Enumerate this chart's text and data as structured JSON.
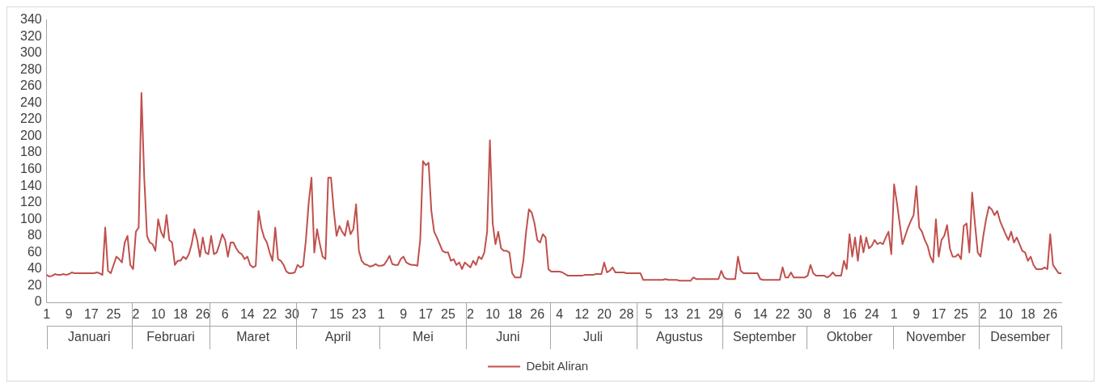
{
  "chart_data": {
    "type": "line",
    "legend": "bottom",
    "grid": false,
    "marker": "none",
    "line_style": "solid",
    "ylim": [
      0,
      340
    ],
    "yticks": [
      0,
      20,
      40,
      60,
      80,
      100,
      120,
      140,
      160,
      180,
      200,
      220,
      240,
      260,
      280,
      300,
      320,
      340
    ],
    "annotations": [
      "Januari",
      "Februari",
      "Maret",
      "April",
      "Mei",
      "Juni",
      "Juli",
      "Agustus",
      "September",
      "Oktober",
      "November",
      "Desember"
    ],
    "categories": [
      "1",
      null,
      null,
      null,
      null,
      null,
      null,
      null,
      "9",
      null,
      null,
      null,
      null,
      null,
      null,
      null,
      "17",
      null,
      null,
      null,
      null,
      null,
      null,
      null,
      "25",
      null,
      null,
      null,
      null,
      null,
      null,
      null,
      "2",
      null,
      null,
      null,
      null,
      null,
      null,
      null,
      "10",
      null,
      null,
      null,
      null,
      null,
      null,
      null,
      "18",
      null,
      null,
      null,
      null,
      null,
      null,
      null,
      "26",
      null,
      null,
      null,
      null,
      null,
      null,
      null,
      "6",
      null,
      null,
      null,
      null,
      null,
      null,
      null,
      "14",
      null,
      null,
      null,
      null,
      null,
      null,
      null,
      "22",
      null,
      null,
      null,
      null,
      null,
      null,
      null,
      "30",
      null,
      null,
      null,
      null,
      null,
      null,
      null,
      "7",
      null,
      null,
      null,
      null,
      null,
      null,
      null,
      "15",
      null,
      null,
      null,
      null,
      null,
      null,
      null,
      "23",
      null,
      null,
      null,
      null,
      null,
      null,
      null,
      "1",
      null,
      null,
      null,
      null,
      null,
      null,
      null,
      "9",
      null,
      null,
      null,
      null,
      null,
      null,
      null,
      "17",
      null,
      null,
      null,
      null,
      null,
      null,
      null,
      "25",
      null,
      null,
      null,
      null,
      null,
      null,
      null,
      "2",
      null,
      null,
      null,
      null,
      null,
      null,
      null,
      "10",
      null,
      null,
      null,
      null,
      null,
      null,
      null,
      "18",
      null,
      null,
      null,
      null,
      null,
      null,
      null,
      "26",
      null,
      null,
      null,
      null,
      null,
      null,
      null,
      "4",
      null,
      null,
      null,
      null,
      null,
      null,
      null,
      "12",
      null,
      null,
      null,
      null,
      null,
      null,
      null,
      "20",
      null,
      null,
      null,
      null,
      null,
      null,
      null,
      "28",
      null,
      null,
      null,
      null,
      null,
      null,
      null,
      "5",
      null,
      null,
      null,
      null,
      null,
      null,
      null,
      "13",
      null,
      null,
      null,
      null,
      null,
      null,
      null,
      "21",
      null,
      null,
      null,
      null,
      null,
      null,
      null,
      "29",
      null,
      null,
      null,
      null,
      null,
      null,
      null,
      "6",
      null,
      null,
      null,
      null,
      null,
      null,
      null,
      "14",
      null,
      null,
      null,
      null,
      null,
      null,
      null,
      "22",
      null,
      null,
      null,
      null,
      null,
      null,
      null,
      "30",
      null,
      null,
      null,
      null,
      null,
      null,
      null,
      "8",
      null,
      null,
      null,
      null,
      null,
      null,
      null,
      "16",
      null,
      null,
      null,
      null,
      null,
      null,
      null,
      "24",
      null,
      null,
      null,
      null,
      null,
      null,
      null,
      "1",
      null,
      null,
      null,
      null,
      null,
      null,
      null,
      "9",
      null,
      null,
      null,
      null,
      null,
      null,
      null,
      "17",
      null,
      null,
      null,
      null,
      null,
      null,
      null,
      "25",
      null,
      null,
      null,
      null,
      null,
      null,
      null,
      "2",
      null,
      null,
      null,
      null,
      null,
      null,
      null,
      "10",
      null,
      null,
      null,
      null,
      null,
      null,
      null,
      "18",
      null,
      null,
      null,
      null,
      null,
      null,
      null,
      "26",
      null,
      null,
      null,
      null
    ],
    "series": [
      {
        "name": "Debit Aliran",
        "color": "#c0504d",
        "values": [
          33,
          31,
          32,
          34,
          33,
          33,
          34,
          33,
          34,
          36,
          35,
          35,
          35,
          35,
          35,
          35,
          35,
          35,
          36,
          35,
          33,
          90,
          38,
          35,
          45,
          55,
          52,
          48,
          72,
          80,
          45,
          40,
          85,
          90,
          252,
          150,
          80,
          72,
          70,
          62,
          100,
          85,
          78,
          105,
          75,
          72,
          45,
          50,
          50,
          55,
          52,
          58,
          70,
          88,
          75,
          55,
          78,
          60,
          58,
          80,
          58,
          60,
          70,
          82,
          75,
          55,
          72,
          72,
          65,
          60,
          58,
          52,
          55,
          45,
          42,
          44,
          110,
          90,
          78,
          72,
          60,
          50,
          90,
          52,
          50,
          45,
          37,
          35,
          35,
          36,
          45,
          42,
          44,
          75,
          120,
          150,
          60,
          88,
          70,
          55,
          52,
          150,
          150,
          110,
          80,
          92,
          85,
          80,
          98,
          82,
          88,
          118,
          62,
          50,
          46,
          45,
          43,
          44,
          46,
          44,
          44,
          45,
          50,
          56,
          46,
          45,
          45,
          52,
          55,
          48,
          46,
          45,
          45,
          44,
          75,
          170,
          165,
          168,
          110,
          85,
          78,
          70,
          62,
          60,
          60,
          50,
          52,
          45,
          48,
          40,
          48,
          45,
          42,
          50,
          45,
          55,
          52,
          60,
          85,
          195,
          95,
          70,
          85,
          65,
          62,
          62,
          60,
          35,
          30,
          30,
          30,
          50,
          85,
          112,
          108,
          95,
          75,
          72,
          82,
          78,
          40,
          37,
          37,
          37,
          37,
          36,
          34,
          32,
          32,
          32,
          32,
          32,
          32,
          33,
          33,
          33,
          33,
          34,
          34,
          34,
          48,
          36,
          38,
          42,
          36,
          36,
          36,
          36,
          35,
          35,
          35,
          35,
          35,
          35,
          27,
          27,
          27,
          27,
          27,
          27,
          27,
          27,
          28,
          27,
          27,
          27,
          27,
          26,
          26,
          26,
          26,
          26,
          30,
          28,
          28,
          28,
          28,
          28,
          28,
          28,
          28,
          28,
          38,
          30,
          28,
          28,
          28,
          28,
          55,
          38,
          35,
          35,
          35,
          35,
          35,
          35,
          28,
          27,
          27,
          27,
          27,
          27,
          27,
          27,
          42,
          30,
          30,
          36,
          30,
          30,
          30,
          30,
          30,
          32,
          45,
          35,
          32,
          32,
          32,
          32,
          30,
          32,
          36,
          32,
          32,
          32,
          50,
          40,
          82,
          55,
          78,
          50,
          80,
          60,
          78,
          65,
          68,
          75,
          70,
          72,
          70,
          78,
          85,
          58,
          142,
          120,
          95,
          70,
          80,
          90,
          98,
          105,
          140,
          90,
          85,
          75,
          68,
          55,
          48,
          100,
          55,
          75,
          80,
          93,
          65,
          55,
          55,
          58,
          52,
          92,
          95,
          60,
          132,
          95,
          60,
          55,
          80,
          100,
          115,
          112,
          105,
          110,
          98,
          90,
          82,
          75,
          85,
          72,
          78,
          70,
          62,
          60,
          50,
          55,
          45,
          40,
          40,
          40,
          42,
          40,
          82,
          45,
          40,
          35,
          35
        ]
      }
    ]
  }
}
